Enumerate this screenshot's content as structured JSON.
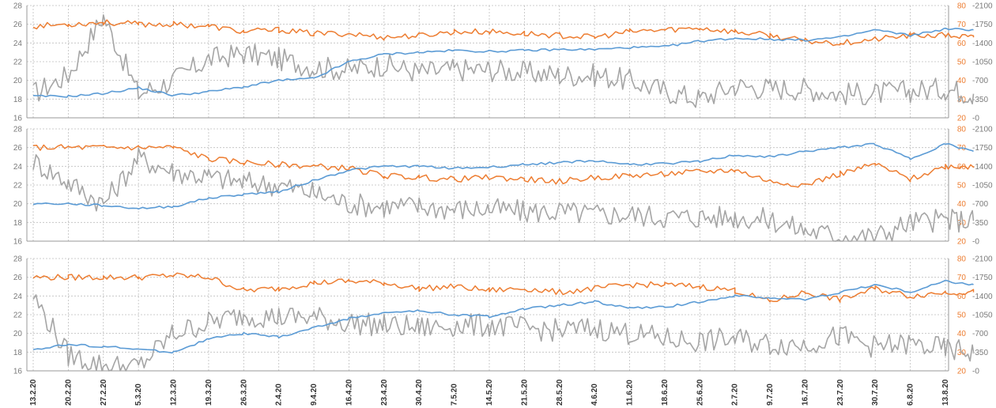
{
  "chart_data": {
    "type": "line",
    "x_ticks": [
      "13.2.20",
      "20.2.20",
      "27.2.20",
      "5.3.20",
      "12.3.20",
      "19.3.20",
      "26.3.20",
      "2.4.20",
      "9.4.20",
      "16.4.20",
      "23.4.20",
      "30.4.20",
      "7.5.20",
      "14.5.20",
      "21.5.20",
      "28.5.20",
      "4.6.20",
      "11.6.20",
      "18.6.20",
      "25.6.20",
      "2.7.20",
      "9.7.20",
      "16.7.20",
      "23.7.20",
      "30.7.20",
      "6.8.20",
      "13.8.20"
    ],
    "left_axis": {
      "ylim": [
        16,
        28
      ],
      "ticks": [
        "16",
        "18",
        "20",
        "22",
        "24",
        "26",
        "28"
      ]
    },
    "right_axis_orange": {
      "ylim": [
        20,
        80
      ],
      "ticks": [
        "20",
        "30",
        "40",
        "50",
        "60",
        "70",
        "80"
      ]
    },
    "right_axis_gray": {
      "ylim": [
        0,
        2100
      ],
      "ticks": [
        "0",
        "350",
        "700",
        "1050",
        "1400",
        "1750",
        "2100"
      ]
    },
    "colors": {
      "blue": "#5b9bd5",
      "orange": "#ed7d31",
      "gray": "#a5a5a5",
      "grid": "#bfbfbf"
    },
    "grid": true,
    "panels": [
      {
        "blue": [
          [
            0,
            18.3
          ],
          [
            1,
            18.3
          ],
          [
            2,
            18.6
          ],
          [
            3,
            19.2
          ],
          [
            4,
            18.4
          ],
          [
            5,
            18.8
          ],
          [
            6,
            19.3
          ],
          [
            7,
            20.0
          ],
          [
            8,
            20.2
          ],
          [
            9,
            22.0
          ],
          [
            10,
            22.8
          ],
          [
            11,
            23.0
          ],
          [
            12,
            23.2
          ],
          [
            13,
            23.1
          ],
          [
            14,
            23.2
          ],
          [
            15,
            23.3
          ],
          [
            16,
            23.3
          ],
          [
            17,
            23.5
          ],
          [
            18,
            23.6
          ],
          [
            19,
            24.2
          ],
          [
            20,
            24.5
          ],
          [
            21,
            24.4
          ],
          [
            22,
            24.3
          ],
          [
            23,
            24.6
          ],
          [
            24,
            25.4
          ],
          [
            25,
            24.8
          ],
          [
            26,
            25.5
          ],
          [
            26.8,
            25.4
          ]
        ],
        "orange": [
          [
            0,
            69
          ],
          [
            1,
            70
          ],
          [
            2,
            71
          ],
          [
            3,
            70
          ],
          [
            4,
            70
          ],
          [
            5,
            69
          ],
          [
            6,
            66
          ],
          [
            7,
            67
          ],
          [
            8,
            65
          ],
          [
            9,
            65
          ],
          [
            10,
            63
          ],
          [
            11,
            64
          ],
          [
            12,
            66
          ],
          [
            13,
            66
          ],
          [
            14,
            65
          ],
          [
            15,
            64
          ],
          [
            16,
            63
          ],
          [
            17,
            66
          ],
          [
            18,
            67
          ],
          [
            19,
            68
          ],
          [
            20,
            66
          ],
          [
            21,
            64
          ],
          [
            22,
            61
          ],
          [
            23,
            60
          ],
          [
            24,
            62
          ],
          [
            25,
            64
          ],
          [
            26,
            64
          ],
          [
            26.8,
            63
          ]
        ],
        "gray": [
          [
            0,
            450
          ],
          [
            1,
            800
          ],
          [
            2,
            1900
          ],
          [
            3,
            450
          ],
          [
            4,
            700
          ],
          [
            5,
            1100
          ],
          [
            6,
            1200
          ],
          [
            7,
            1100
          ],
          [
            8,
            950
          ],
          [
            9,
            900
          ],
          [
            10,
            1000
          ],
          [
            11,
            850
          ],
          [
            12,
            900
          ],
          [
            13,
            900
          ],
          [
            14,
            850
          ],
          [
            15,
            800
          ],
          [
            16,
            800
          ],
          [
            17,
            700
          ],
          [
            18,
            500
          ],
          [
            19,
            350
          ],
          [
            20,
            600
          ],
          [
            21,
            550
          ],
          [
            22,
            550
          ],
          [
            23,
            450
          ],
          [
            24,
            450
          ],
          [
            25,
            500
          ],
          [
            26,
            550
          ],
          [
            26.8,
            450
          ]
        ]
      },
      {
        "blue": [
          [
            0,
            20.0
          ],
          [
            1,
            20.0
          ],
          [
            2,
            19.8
          ],
          [
            3,
            19.5
          ],
          [
            4,
            19.7
          ],
          [
            5,
            20.6
          ],
          [
            6,
            21.0
          ],
          [
            7,
            21.3
          ],
          [
            8,
            22.5
          ],
          [
            9,
            23.6
          ],
          [
            10,
            24.0
          ],
          [
            11,
            24.0
          ],
          [
            12,
            23.8
          ],
          [
            13,
            23.9
          ],
          [
            14,
            24.2
          ],
          [
            15,
            24.4
          ],
          [
            16,
            24.6
          ],
          [
            17,
            24.2
          ],
          [
            18,
            24.3
          ],
          [
            19,
            24.5
          ],
          [
            20,
            25.2
          ],
          [
            21,
            25.0
          ],
          [
            22,
            25.6
          ],
          [
            23,
            26.0
          ],
          [
            24,
            26.4
          ],
          [
            25,
            24.8
          ],
          [
            26,
            26.4
          ],
          [
            26.8,
            25.6
          ]
        ],
        "orange": [
          [
            0,
            70
          ],
          [
            1,
            70
          ],
          [
            2,
            70
          ],
          [
            3,
            70
          ],
          [
            4,
            70
          ],
          [
            5,
            64
          ],
          [
            6,
            62
          ],
          [
            7,
            61
          ],
          [
            8,
            60
          ],
          [
            9,
            59
          ],
          [
            10,
            55
          ],
          [
            11,
            54
          ],
          [
            12,
            53
          ],
          [
            13,
            54
          ],
          [
            14,
            53
          ],
          [
            15,
            52
          ],
          [
            16,
            54
          ],
          [
            17,
            55
          ],
          [
            18,
            56
          ],
          [
            19,
            57
          ],
          [
            20,
            58
          ],
          [
            21,
            52
          ],
          [
            22,
            50
          ],
          [
            23,
            56
          ],
          [
            24,
            61
          ],
          [
            25,
            53
          ],
          [
            26,
            60
          ],
          [
            26.8,
            60
          ]
        ],
        "gray": [
          [
            0,
            1500
          ],
          [
            1,
            1100
          ],
          [
            2,
            700
          ],
          [
            3,
            1550
          ],
          [
            4,
            1300
          ],
          [
            5,
            1200
          ],
          [
            6,
            1100
          ],
          [
            7,
            1050
          ],
          [
            8,
            900
          ],
          [
            9,
            700
          ],
          [
            10,
            650
          ],
          [
            11,
            650
          ],
          [
            12,
            600
          ],
          [
            13,
            600
          ],
          [
            14,
            550
          ],
          [
            15,
            550
          ],
          [
            16,
            500
          ],
          [
            17,
            500
          ],
          [
            18,
            450
          ],
          [
            19,
            450
          ],
          [
            20,
            450
          ],
          [
            21,
            400
          ],
          [
            22,
            200
          ],
          [
            23,
            100
          ],
          [
            24,
            80
          ],
          [
            25,
            350
          ],
          [
            26,
            400
          ],
          [
            26.8,
            380
          ]
        ]
      },
      {
        "blue": [
          [
            0,
            18.3
          ],
          [
            1,
            18.8
          ],
          [
            2,
            18.6
          ],
          [
            3,
            18.3
          ],
          [
            4,
            18.0
          ],
          [
            5,
            19.4
          ],
          [
            6,
            20.0
          ],
          [
            7,
            19.6
          ],
          [
            8,
            20.6
          ],
          [
            9,
            21.6
          ],
          [
            10,
            22.2
          ],
          [
            11,
            22.4
          ],
          [
            12,
            22.0
          ],
          [
            13,
            21.8
          ],
          [
            14,
            22.6
          ],
          [
            15,
            23.0
          ],
          [
            16,
            23.4
          ],
          [
            17,
            22.7
          ],
          [
            18,
            22.8
          ],
          [
            19,
            23.4
          ],
          [
            20,
            24.0
          ],
          [
            21,
            23.8
          ],
          [
            22,
            23.6
          ],
          [
            23,
            24.4
          ],
          [
            24,
            25.2
          ],
          [
            25,
            24.4
          ],
          [
            26,
            25.6
          ],
          [
            26.8,
            25.2
          ]
        ],
        "orange": [
          [
            0,
            70
          ],
          [
            1,
            70
          ],
          [
            2,
            70
          ],
          [
            3,
            70
          ],
          [
            4,
            71
          ],
          [
            5,
            70
          ],
          [
            6,
            63
          ],
          [
            7,
            64
          ],
          [
            8,
            67
          ],
          [
            9,
            68
          ],
          [
            10,
            67
          ],
          [
            11,
            64
          ],
          [
            12,
            65
          ],
          [
            13,
            63
          ],
          [
            14,
            64
          ],
          [
            15,
            62
          ],
          [
            16,
            64
          ],
          [
            17,
            66
          ],
          [
            18,
            66
          ],
          [
            19,
            65
          ],
          [
            20,
            63
          ],
          [
            21,
            57
          ],
          [
            22,
            62
          ],
          [
            23,
            58
          ],
          [
            24,
            64
          ],
          [
            25,
            60
          ],
          [
            26,
            62
          ],
          [
            26.8,
            62
          ]
        ],
        "gray": [
          [
            0,
            1400
          ],
          [
            1,
            300
          ],
          [
            2,
            100
          ],
          [
            3,
            70
          ],
          [
            4,
            700
          ],
          [
            5,
            900
          ],
          [
            6,
            1050
          ],
          [
            7,
            1000
          ],
          [
            8,
            1000
          ],
          [
            9,
            900
          ],
          [
            10,
            850
          ],
          [
            11,
            800
          ],
          [
            12,
            850
          ],
          [
            13,
            850
          ],
          [
            14,
            800
          ],
          [
            15,
            750
          ],
          [
            16,
            800
          ],
          [
            17,
            700
          ],
          [
            18,
            600
          ],
          [
            19,
            550
          ],
          [
            20,
            600
          ],
          [
            21,
            500
          ],
          [
            22,
            500
          ],
          [
            23,
            650
          ],
          [
            24,
            450
          ],
          [
            25,
            500
          ],
          [
            26,
            400
          ],
          [
            26.8,
            350
          ]
        ]
      }
    ]
  }
}
